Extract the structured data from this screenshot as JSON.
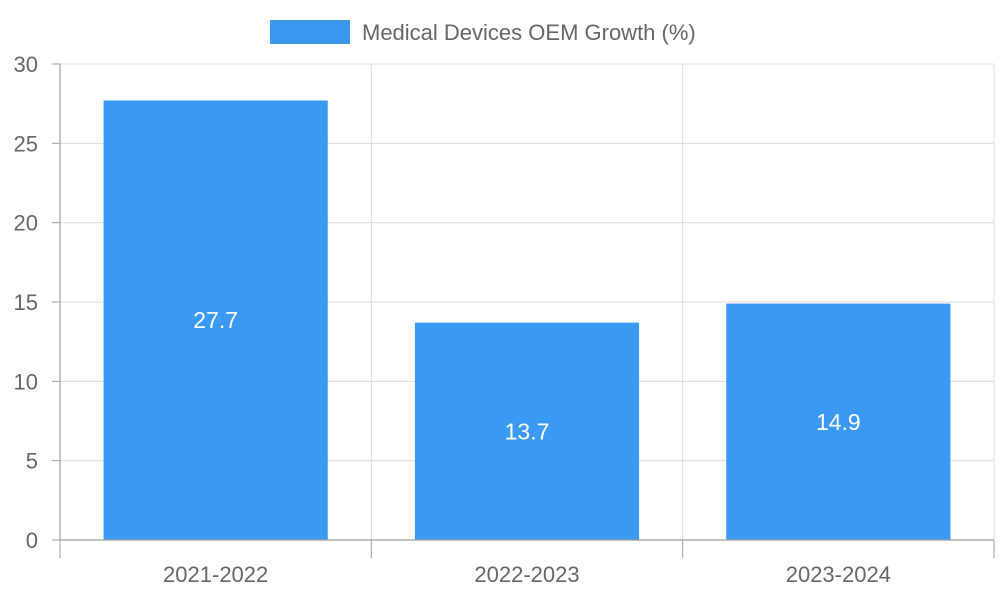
{
  "colors": {
    "bar": "#3a99f0",
    "grid": "#dcdcdc",
    "axis": "#9e9e9e",
    "text": "#666666",
    "label": "#ffffff"
  },
  "chart_data": {
    "type": "bar",
    "title": "",
    "legend": {
      "position": "top-center",
      "entries": [
        "Medical Devices OEM Growth (%)"
      ]
    },
    "categories": [
      "2021-2022",
      "2022-2023",
      "2023-2024"
    ],
    "series": [
      {
        "name": "Medical Devices OEM Growth (%)",
        "values": [
          27.7,
          13.7,
          14.9
        ],
        "data_labels": [
          "27.7",
          "13.7",
          "14.9"
        ]
      }
    ],
    "xlabel": "",
    "ylabel": "",
    "ylim": [
      0,
      30
    ],
    "yticks": [
      0,
      5,
      10,
      15,
      20,
      25,
      30
    ],
    "ytick_labels": [
      "0",
      "5",
      "10",
      "15",
      "20",
      "25",
      "30"
    ],
    "grid": true
  }
}
